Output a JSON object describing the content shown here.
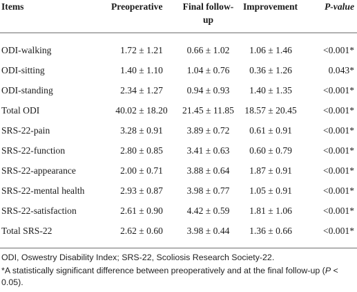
{
  "table": {
    "headers": {
      "items": "Items",
      "preoperative": "Preoperative",
      "final_followup": "Final follow-up",
      "improvement": "Improvement",
      "p_value": "P-value"
    },
    "rows": [
      {
        "item": "ODI-walking",
        "preoperative": "1.72 ± 1.21",
        "final_followup": "0.66 ± 1.02",
        "improvement": "1.06 ± 1.46",
        "p_value": "<0.001*"
      },
      {
        "item": "ODI-sitting",
        "preoperative": "1.40 ± 1.10",
        "final_followup": "1.04 ± 0.76",
        "improvement": "0.36 ± 1.26",
        "p_value": "0.043*"
      },
      {
        "item": "ODI-standing",
        "preoperative": "2.34 ± 1.27",
        "final_followup": "0.94 ± 0.93",
        "improvement": "1.40 ± 1.35",
        "p_value": "<0.001*"
      },
      {
        "item": "Total ODI",
        "preoperative": "40.02 ± 18.20",
        "final_followup": "21.45 ± 11.85",
        "improvement": "18.57 ± 20.45",
        "p_value": "<0.001*"
      },
      {
        "item": "SRS-22-pain",
        "preoperative": "3.28 ± 0.91",
        "final_followup": "3.89 ± 0.72",
        "improvement": "0.61 ± 0.91",
        "p_value": "<0.001*"
      },
      {
        "item": "SRS-22-function",
        "preoperative": "2.80 ± 0.85",
        "final_followup": "3.41 ± 0.63",
        "improvement": "0.60 ± 0.79",
        "p_value": "<0.001*"
      },
      {
        "item": "SRS-22-appearance",
        "preoperative": "2.00 ± 0.71",
        "final_followup": "3.88 ± 0.64",
        "improvement": "1.87 ± 0.91",
        "p_value": "<0.001*"
      },
      {
        "item": "SRS-22-mental health",
        "preoperative": "2.93 ± 0.87",
        "final_followup": "3.98 ± 0.77",
        "improvement": "1.05 ± 0.91",
        "p_value": "<0.001*"
      },
      {
        "item": "SRS-22-satisfaction",
        "preoperative": "2.61 ± 0.90",
        "final_followup": "4.42 ± 0.59",
        "improvement": "1.81 ± 1.06",
        "p_value": "<0.001*"
      },
      {
        "item": "Total SRS-22",
        "preoperative": "2.62 ± 0.60",
        "final_followup": "3.98 ± 0.44",
        "improvement": "1.36 ± 0.66",
        "p_value": "<0.001*"
      }
    ]
  },
  "footnotes": {
    "abbreviations": "ODI, Oswestry Disability Index; SRS-22, Scoliosis Research Society-22.",
    "significance_prefix": "*A statistically significant difference between preoperatively and at the final follow-up (",
    "significance_italic": "P",
    "significance_suffix": " < 0.05)."
  }
}
